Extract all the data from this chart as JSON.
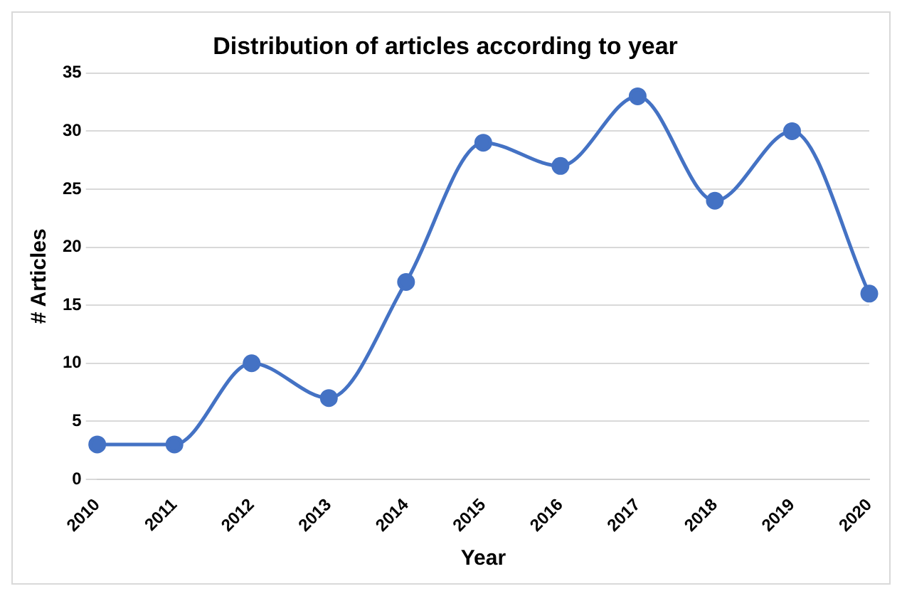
{
  "chart_data": {
    "type": "line",
    "title": "Distribution of articles according to year",
    "xlabel": "Year",
    "ylabel": "# Articles",
    "categories": [
      "2010",
      "2011",
      "2012",
      "2013",
      "2014",
      "2015",
      "2016",
      "2017",
      "2018",
      "2019",
      "2020"
    ],
    "series": [
      {
        "color": "#4472c4",
        "values": [
          3,
          3,
          10,
          7,
          17,
          29,
          27,
          33,
          24,
          30,
          16
        ]
      }
    ],
    "ylim": [
      0,
      35
    ],
    "yticks": [
      0,
      5,
      10,
      15,
      20,
      25,
      30,
      35
    ],
    "grid": "y",
    "legend": false,
    "marker": "circle",
    "line_style": "solid"
  }
}
